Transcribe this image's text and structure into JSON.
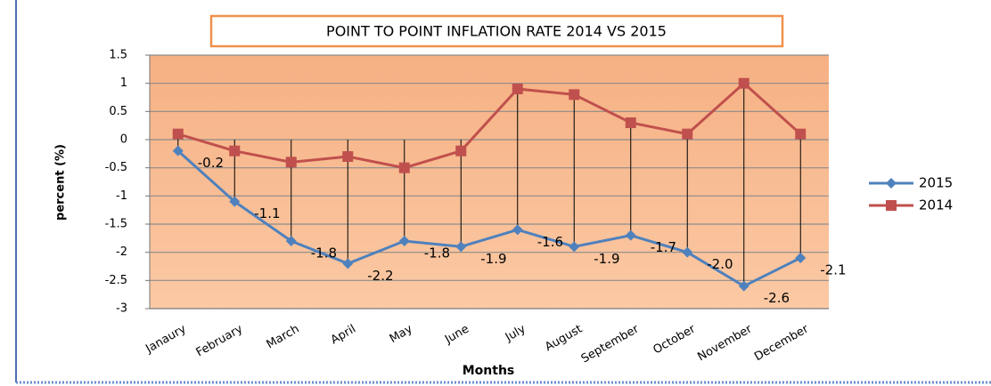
{
  "chart_data": {
    "type": "line",
    "title": "POINT TO POINT INFLATION RATE 2014 VS 2015",
    "xlabel": "Months",
    "ylabel": "percent (%)",
    "categories": [
      "Janaury",
      "February",
      "March",
      "April",
      "May",
      "June",
      "July",
      "August",
      "September",
      "October",
      "November",
      "December"
    ],
    "series": [
      {
        "name": "2015",
        "color": "#4f81bd",
        "marker": "diamond",
        "values": [
          -0.2,
          -1.1,
          -1.8,
          -2.2,
          -1.8,
          -1.9,
          -1.6,
          -1.9,
          -1.7,
          -2.0,
          -2.6,
          -2.1
        ],
        "value_labels": [
          "-0.2",
          "-1.1",
          "-1.8",
          "-2.2",
          "-1.8",
          "-1.9",
          "-1.6",
          "-1.9",
          "-1.7",
          "-2.0",
          "-2.6",
          "-2.1"
        ]
      },
      {
        "name": "2014",
        "color": "#c0504d",
        "marker": "square",
        "values": [
          0.1,
          -0.2,
          -0.4,
          -0.3,
          -0.5,
          -0.2,
          0.9,
          0.8,
          0.3,
          0.1,
          1.0,
          0.1
        ]
      }
    ],
    "ylim": [
      -3,
      1.5
    ],
    "yticks": [
      1.5,
      1,
      0.5,
      0,
      -0.5,
      -1,
      -1.5,
      -2,
      -2.5,
      -3
    ],
    "grid": true,
    "legend": "right",
    "hi_low_lines": true
  }
}
